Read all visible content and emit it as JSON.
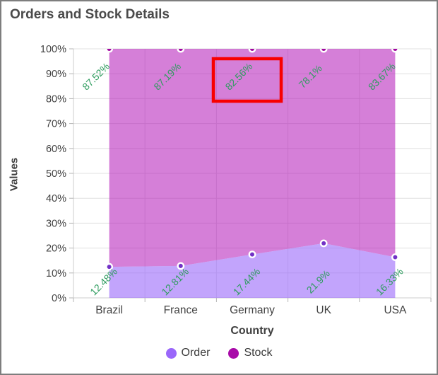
{
  "window": {
    "title": "Orders and Stock Details"
  },
  "chart_data": {
    "type": "area",
    "variant": "100%-stacked-area",
    "title": "Orders and Stock Details",
    "categories": [
      "Brazil",
      "France",
      "Germany",
      "UK",
      "USA"
    ],
    "series": [
      {
        "name": "Order",
        "values": [
          12.48,
          12.81,
          17.44,
          21.9,
          16.33
        ],
        "labels": [
          "12.48%",
          "12.81%",
          "17.44%",
          "21.9%",
          "16.33%"
        ],
        "legend_color": "#9a67fa",
        "fill_rgba": "rgba(154,103,250,0.6)",
        "marker_color": "#7231c6"
      },
      {
        "name": "Stock",
        "values": [
          87.52,
          87.19,
          82.56,
          78.1,
          83.67
        ],
        "labels": [
          "87.52%",
          "87.19%",
          "82.56%",
          "78.1%",
          "83.67%"
        ],
        "legend_color": "#a80aa8",
        "fill_rgba": "rgba(179,22,184,0.55)",
        "marker_color": "#a0059e"
      }
    ],
    "xlabel": "Country",
    "ylabel": "Values",
    "ylim": [
      0,
      100
    ],
    "y_ticks": [
      "0%",
      "10%",
      "20%",
      "30%",
      "40%",
      "50%",
      "60%",
      "70%",
      "80%",
      "90%",
      "100%"
    ],
    "grid": true,
    "legend_position": "bottom",
    "label_color": "#2e9c5e",
    "annotation": {
      "type": "highlight-box",
      "target_series": "Stock",
      "target_category": "Germany",
      "target_label": "82.56%",
      "color": "#f80000"
    }
  },
  "legend": {
    "items": [
      {
        "label": "Order",
        "color": "#9a67fa"
      },
      {
        "label": "Stock",
        "color": "#a80aa8"
      }
    ]
  }
}
